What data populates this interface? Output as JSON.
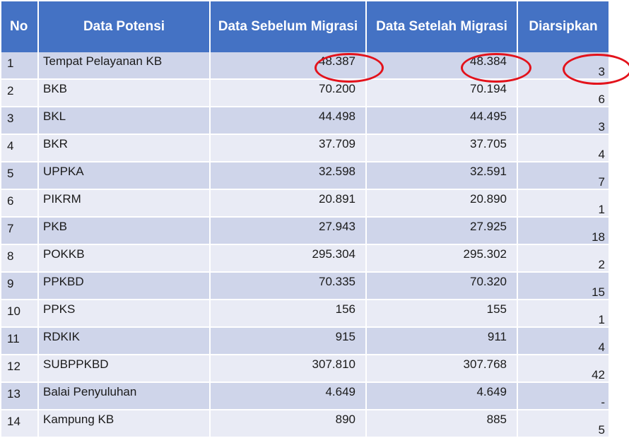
{
  "table": {
    "headers": {
      "no": "No",
      "data_potensi": "Data Potensi",
      "sebelum": "Data Sebelum Migrasi",
      "setelah": "Data Setelah Migrasi",
      "diarsipkan": "Diarsipkan"
    },
    "rows": [
      {
        "no": "1",
        "name": "Tempat Pelayanan KB",
        "before": "48.387",
        "after": "48.384",
        "archived": "3"
      },
      {
        "no": "2",
        "name": "BKB",
        "before": "70.200",
        "after": "70.194",
        "archived": "6"
      },
      {
        "no": "3",
        "name": "BKL",
        "before": "44.498",
        "after": "44.495",
        "archived": "3"
      },
      {
        "no": "4",
        "name": "BKR",
        "before": "37.709",
        "after": "37.705",
        "archived": "4"
      },
      {
        "no": "5",
        "name": "UPPKA",
        "before": "32.598",
        "after": "32.591",
        "archived": "7"
      },
      {
        "no": "6",
        "name": "PIKRM",
        "before": "20.891",
        "after": "20.890",
        "archived": "1"
      },
      {
        "no": "7",
        "name": "PKB",
        "before": "27.943",
        "after": "27.925",
        "archived": "18"
      },
      {
        "no": "8",
        "name": "POKKB",
        "before": "295.304",
        "after": "295.302",
        "archived": "2"
      },
      {
        "no": "9",
        "name": "PPKBD",
        "before": "70.335",
        "after": "70.320",
        "archived": "15"
      },
      {
        "no": "10",
        "name": "PPKS",
        "before": "156",
        "after": "155",
        "archived": "1"
      },
      {
        "no": "11",
        "name": "RDKIK",
        "before": "915",
        "after": "911",
        "archived": "4"
      },
      {
        "no": "12",
        "name": "SUBPPKBD",
        "before": "307.810",
        "after": "307.768",
        "archived": "42"
      },
      {
        "no": "13",
        "name": "Balai Penyuluhan",
        "before": "4.649",
        "after": "4.649",
        "archived": "-"
      },
      {
        "no": "14",
        "name": "Kampung KB",
        "before": "890",
        "after": "885",
        "archived": "5"
      }
    ]
  },
  "highlight_color": "#e3121b",
  "header_color": "#4472c4"
}
